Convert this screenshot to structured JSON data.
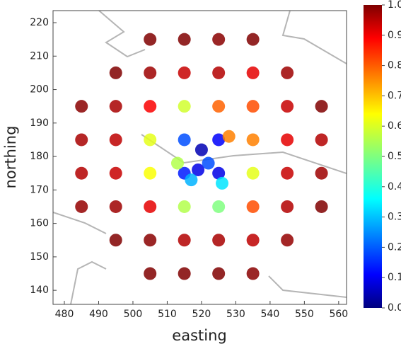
{
  "chart_data": {
    "type": "scatter",
    "x_label": "easting",
    "y_label": "northing",
    "x": [
      485,
      485,
      485,
      485,
      495,
      495,
      495,
      495,
      495,
      495,
      505,
      505,
      505,
      505,
      505,
      505,
      505,
      505,
      515,
      515,
      515,
      515,
      515,
      515,
      515,
      515,
      525,
      525,
      525,
      525,
      525,
      525,
      525,
      525,
      535,
      535,
      535,
      535,
      535,
      535,
      535,
      535,
      545,
      545,
      545,
      545,
      545,
      545,
      555,
      555,
      555,
      555,
      520,
      519,
      522,
      517,
      526,
      513,
      528
    ],
    "y": [
      165,
      175,
      185,
      195,
      155,
      165,
      175,
      185,
      195,
      205,
      145,
      155,
      165,
      175,
      185,
      195,
      205,
      215,
      145,
      155,
      165,
      175,
      185,
      195,
      205,
      215,
      145,
      155,
      165,
      175,
      185,
      195,
      205,
      215,
      145,
      155,
      165,
      175,
      185,
      195,
      205,
      215,
      155,
      165,
      175,
      185,
      195,
      205,
      165,
      175,
      185,
      195,
      182,
      176,
      178,
      173,
      172,
      178,
      186
    ],
    "color_values": [
      0.98,
      0.95,
      0.96,
      0.99,
      1.0,
      0.97,
      0.93,
      0.94,
      0.96,
      1.0,
      1.0,
      0.99,
      0.9,
      0.62,
      0.6,
      0.88,
      0.97,
      1.0,
      1.0,
      0.95,
      0.55,
      0.15,
      0.2,
      0.58,
      0.93,
      1.0,
      1.0,
      0.96,
      0.5,
      0.1,
      0.12,
      0.78,
      0.95,
      0.99,
      0.99,
      0.94,
      0.8,
      0.6,
      0.75,
      0.8,
      0.9,
      1.0,
      0.98,
      0.95,
      0.93,
      0.9,
      0.93,
      0.97,
      1.0,
      0.97,
      0.95,
      1.0,
      0.05,
      0.1,
      0.2,
      0.3,
      0.35,
      0.55,
      0.75
    ],
    "xlim": [
      476.7,
      562.3
    ],
    "ylim": [
      135.8,
      223.6
    ],
    "xticks": [
      480,
      490,
      500,
      510,
      520,
      530,
      540,
      550,
      560
    ],
    "yticks": [
      140,
      150,
      160,
      170,
      180,
      190,
      200,
      210,
      220
    ],
    "clim": [
      0,
      1
    ],
    "cticks": [
      {
        "value": 0,
        "label": "0.0"
      },
      0.1,
      0.2,
      0.3,
      0.4,
      0.5,
      0.6,
      0.7,
      0.8,
      0.9,
      {
        "value": 1,
        "label": "1.0"
      }
    ],
    "colormap": "jet"
  }
}
